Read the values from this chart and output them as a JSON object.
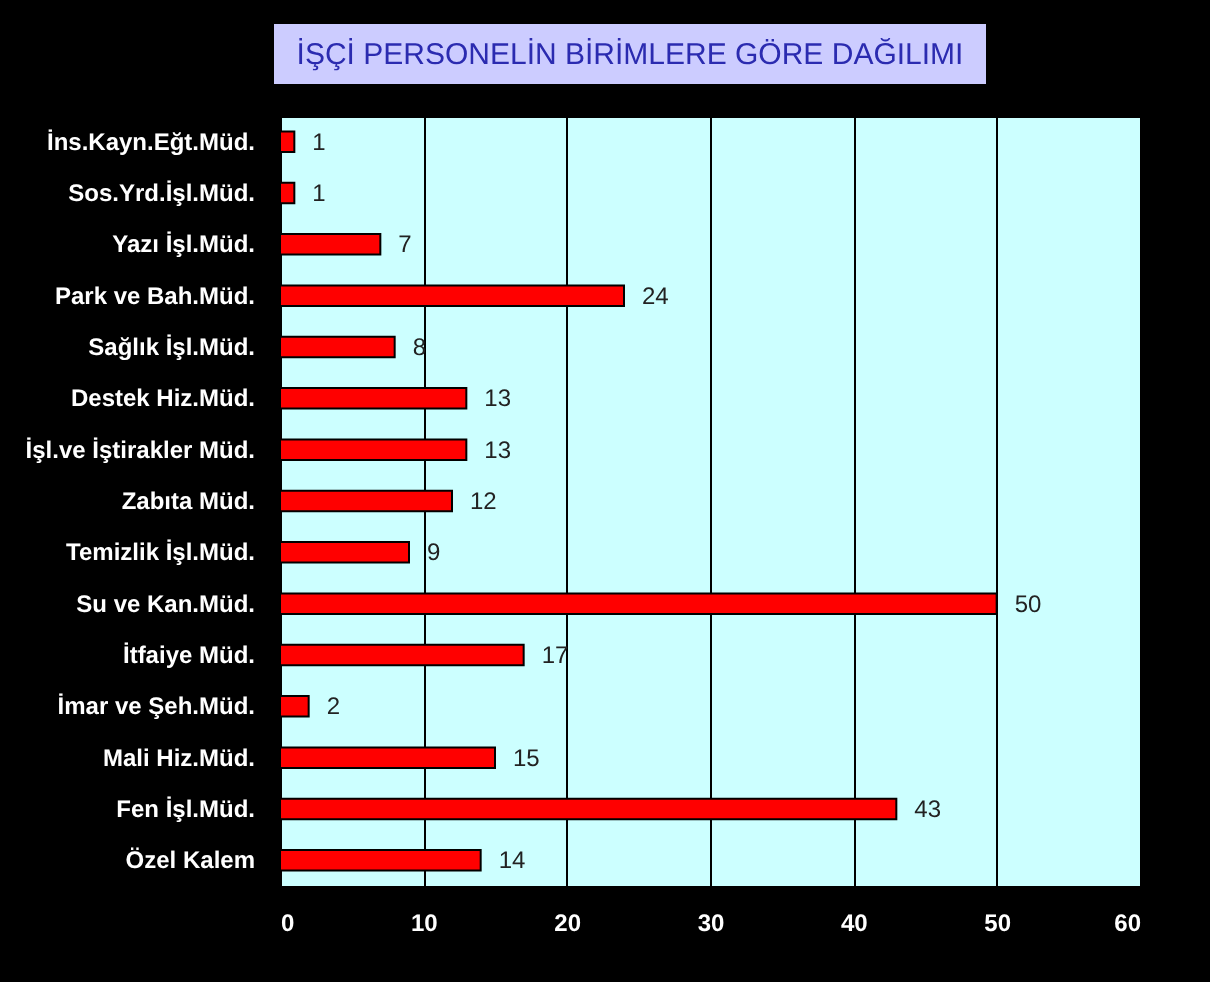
{
  "chart_data": {
    "type": "bar",
    "orientation": "horizontal",
    "title": "İŞÇİ PERSONELİN BİRİMLERE GÖRE DAĞILIMI",
    "categories": [
      "İns.Kayn.Eğt.Müd.",
      "Sos.Yrd.İşl.Müd.",
      "Yazı İşl.Müd.",
      "Park ve Bah.Müd.",
      "Sağlık İşl.Müd.",
      "Destek Hiz.Müd.",
      "İşl.ve İştirakler Müd.",
      "Zabıta Müd.",
      "Temizlik İşl.Müd.",
      "Su ve Kan.Müd.",
      "İtfaiye Müd.",
      "İmar ve Şeh.Müd.",
      "Mali Hiz.Müd.",
      "Fen İşl.Müd.",
      "Özel Kalem"
    ],
    "values": [
      1,
      1,
      7,
      24,
      8,
      13,
      13,
      12,
      9,
      50,
      17,
      2,
      15,
      43,
      14
    ],
    "color": "#ff0000",
    "xlim": [
      0,
      60
    ],
    "xticks": [
      0,
      10,
      20,
      30,
      40,
      50,
      60
    ],
    "grid": "x",
    "data_labels": true
  }
}
